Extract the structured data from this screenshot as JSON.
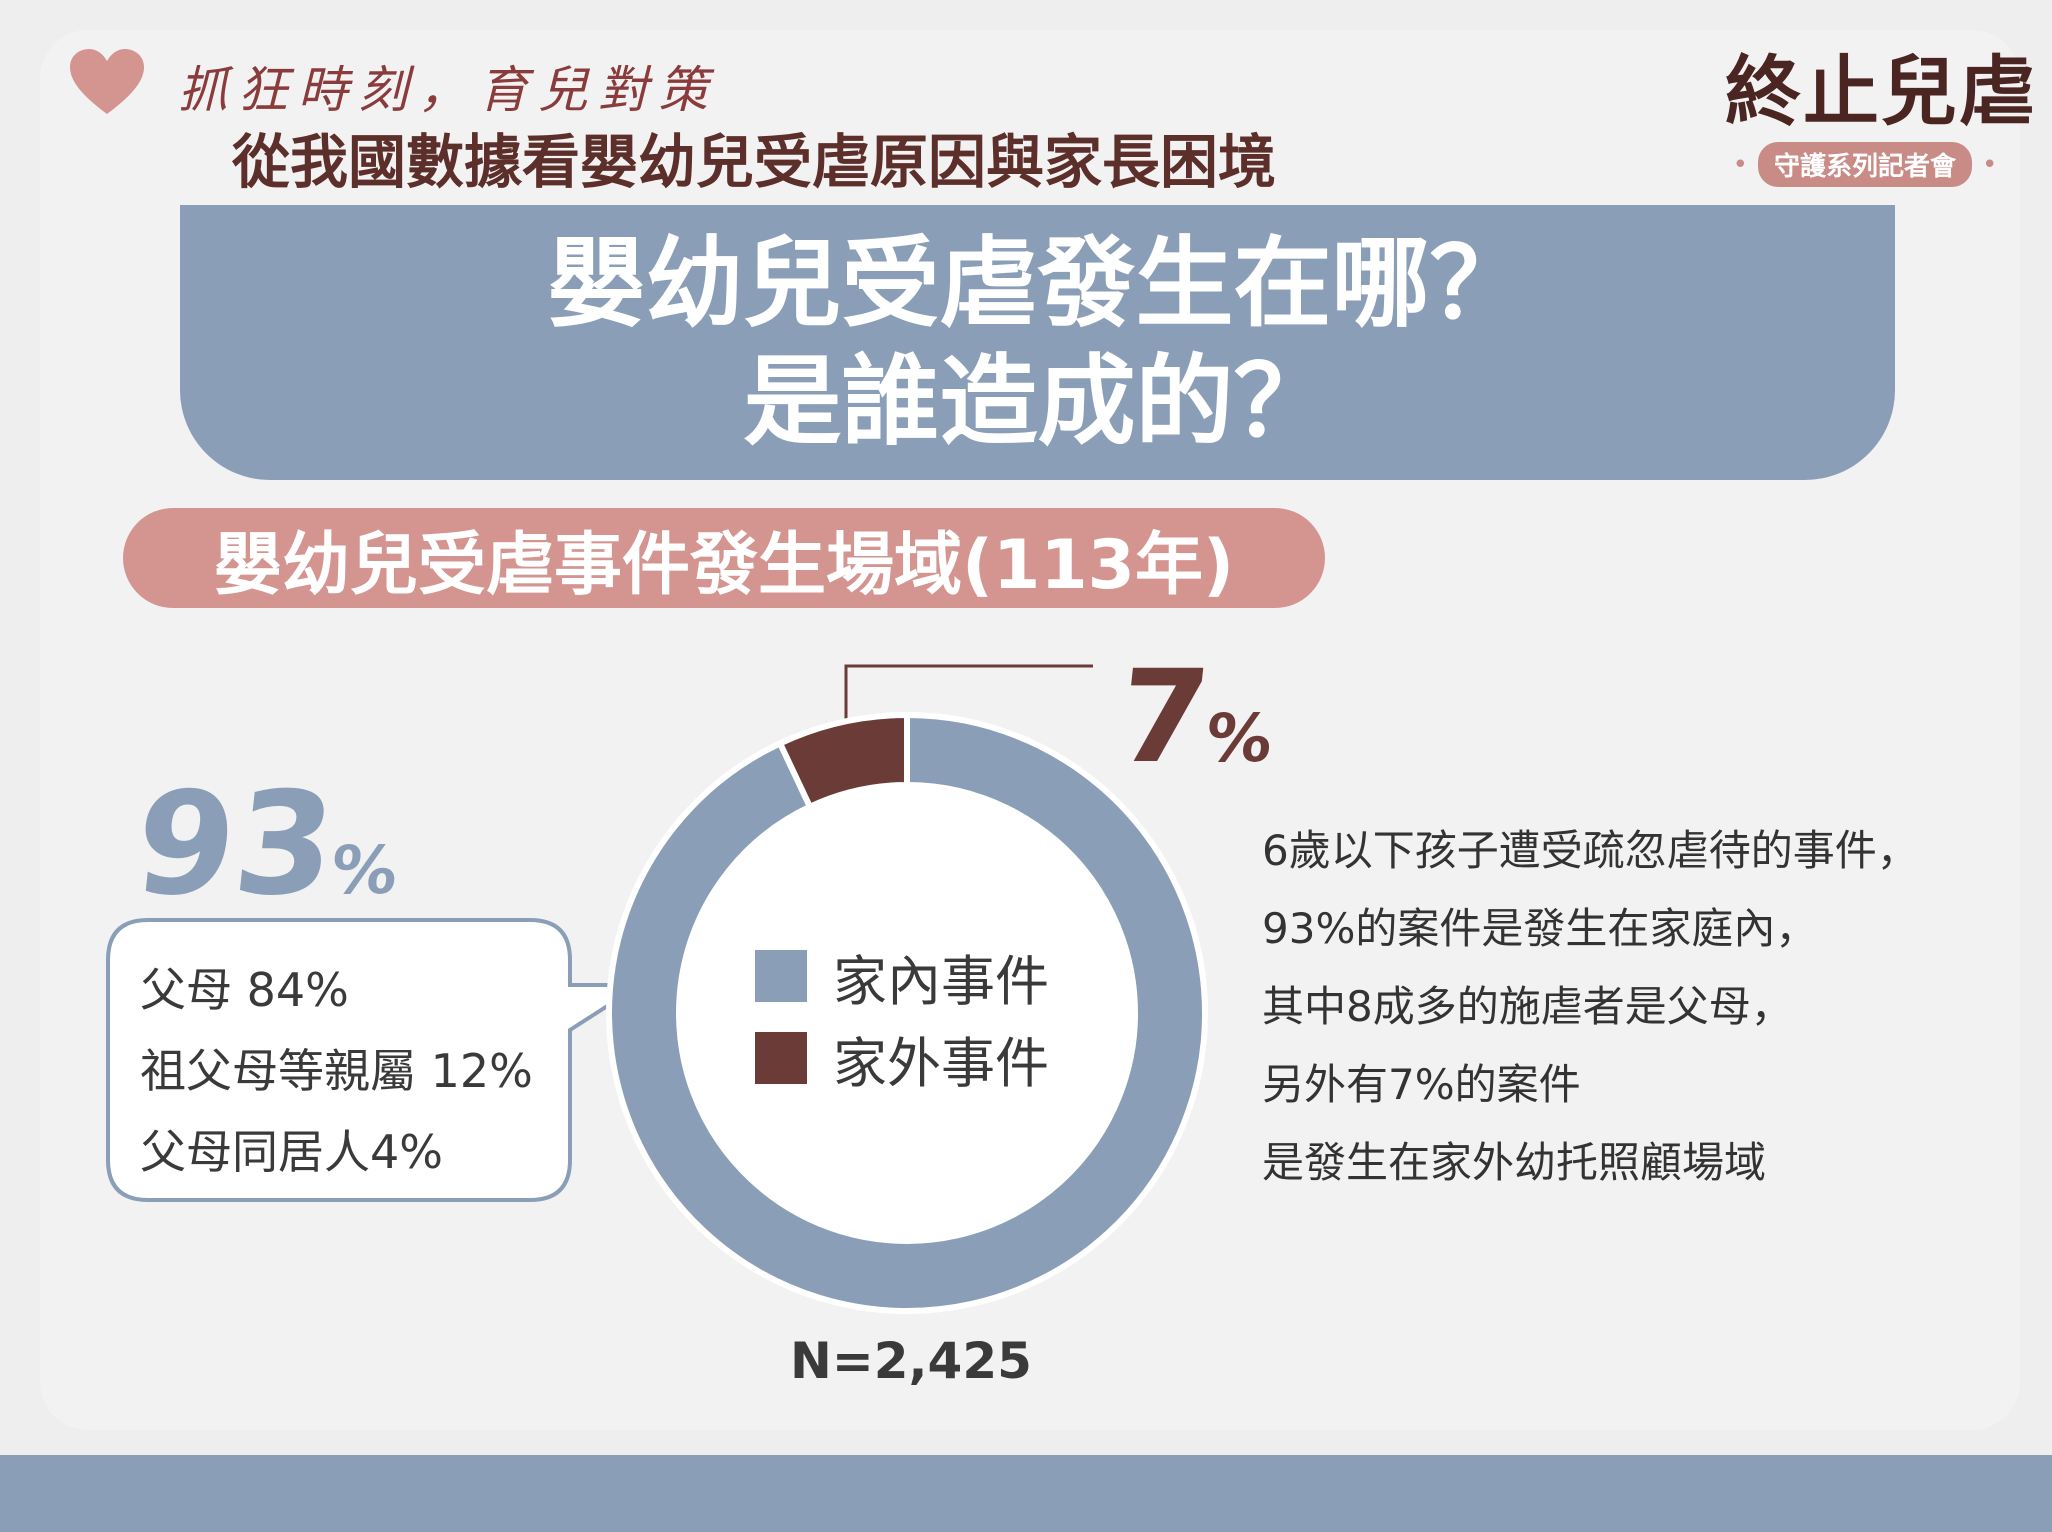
{
  "header": {
    "tagline": "抓狂時刻，育兒對策",
    "subtitle": "從我國數據看嬰幼兒受虐原因與家長困境"
  },
  "logo": {
    "title": "終止兒虐",
    "subtitle": "守護系列記者會"
  },
  "banner": {
    "line1": "嬰幼兒受虐發生在哪？",
    "line2": "是誰造成的？"
  },
  "section_title": "嬰幼兒受虐事件發生場域(113年)",
  "callouts": {
    "home_value": "93",
    "outside_value": "7",
    "percent_sign": "%"
  },
  "perpetrators": [
    "父母 84%",
    "祖父母等親屬 12%",
    "父母同居人4%"
  ],
  "description": [
    "6歲以下孩子遭受疏忽虐待的事件，",
    "93%的案件是發生在家庭內，",
    "其中8成多的施虐者是父母，",
    "另外有7%的案件",
    "是發生在家外幼托照顧場域"
  ],
  "sample_size": "N=2,425",
  "colors": {
    "slate_blue": "#8a9fb7",
    "dark_brown": "#6b3b38",
    "rose": "#d49590"
  },
  "chart_data": {
    "type": "pie",
    "title": "嬰幼兒受虐事件發生場域(113年)",
    "categories": [
      "家內事件",
      "家外事件"
    ],
    "values": [
      93,
      7
    ],
    "unit": "%",
    "colors": [
      "#8a9fb7",
      "#6b3b38"
    ],
    "legend_position": "center",
    "note": "N=2,425"
  }
}
